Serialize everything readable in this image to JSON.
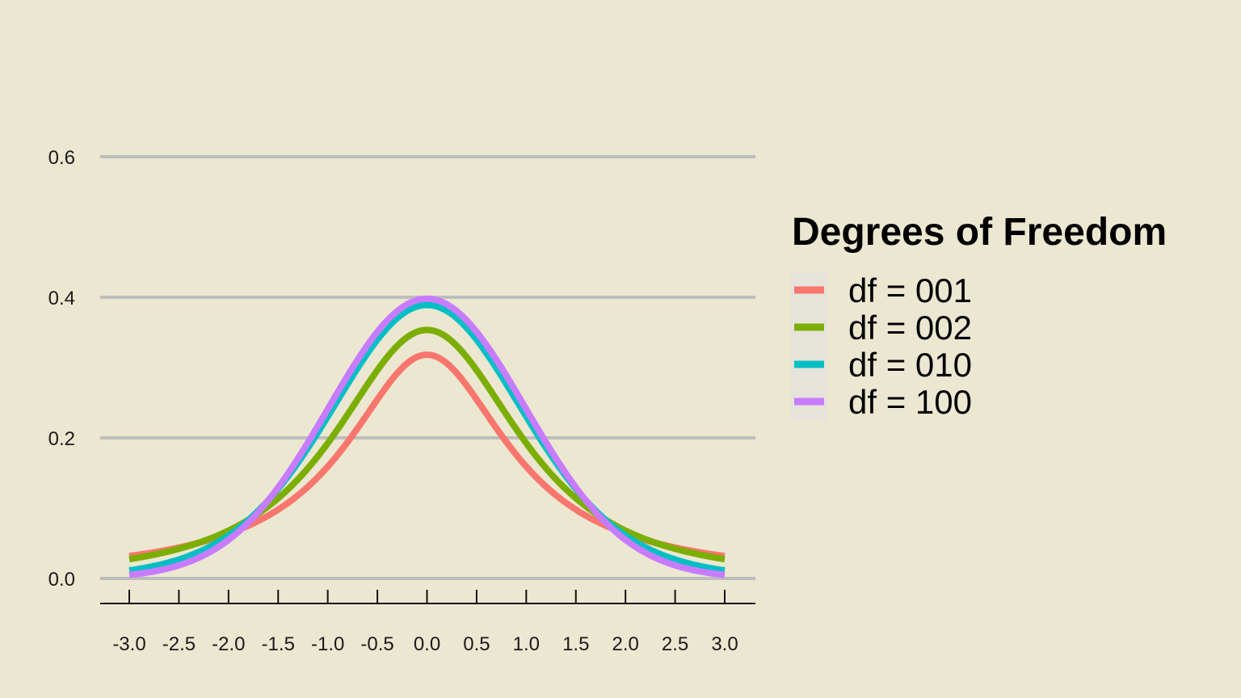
{
  "chart_data": {
    "type": "line",
    "title": "",
    "xlabel": "",
    "ylabel": "",
    "xlim": [
      -3.0,
      3.0
    ],
    "ylim": [
      0.0,
      0.6
    ],
    "x_ticks": [
      "-3.0",
      "-2.5",
      "-2.0",
      "-1.5",
      "-1.0",
      "-0.5",
      "0.0",
      "0.5",
      "1.0",
      "1.5",
      "2.0",
      "2.5",
      "3.0"
    ],
    "y_ticks": [
      "0.0",
      "0.2",
      "0.4",
      "0.6"
    ],
    "grid": "horizontal",
    "legend": {
      "title": "Degrees of Freedom",
      "placement": "right"
    },
    "x": [
      -3.0,
      -2.5,
      -2.0,
      -1.5,
      -1.0,
      -0.5,
      0.0,
      0.5,
      1.0,
      1.5,
      2.0,
      2.5,
      3.0
    ],
    "series": [
      {
        "name": "df = 001",
        "color": "#F8766D",
        "df": 1,
        "values": [
          0.032,
          0.044,
          0.064,
          0.098,
          0.159,
          0.255,
          0.318,
          0.255,
          0.159,
          0.098,
          0.064,
          0.044,
          0.032
        ]
      },
      {
        "name": "df = 002",
        "color": "#7CAE00",
        "df": 2,
        "values": [
          0.027,
          0.042,
          0.068,
          0.114,
          0.192,
          0.295,
          0.354,
          0.295,
          0.192,
          0.114,
          0.068,
          0.042,
          0.027
        ]
      },
      {
        "name": "df = 010",
        "color": "#00BFC4",
        "df": 10,
        "values": [
          0.011,
          0.023,
          0.061,
          0.124,
          0.23,
          0.34,
          0.389,
          0.34,
          0.23,
          0.124,
          0.061,
          0.023,
          0.011
        ]
      },
      {
        "name": "df = 100",
        "color": "#C77CFF",
        "df": 100,
        "values": [
          0.005,
          0.018,
          0.055,
          0.129,
          0.241,
          0.351,
          0.398,
          0.351,
          0.241,
          0.129,
          0.055,
          0.018,
          0.005
        ]
      }
    ]
  }
}
